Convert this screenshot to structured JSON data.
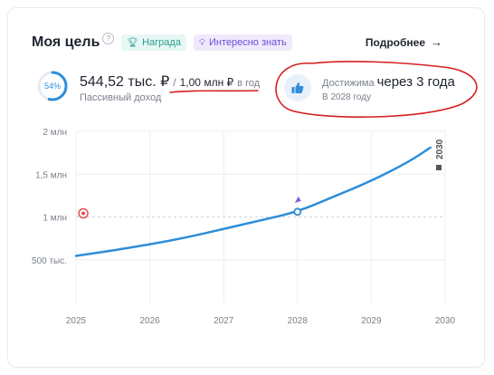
{
  "header": {
    "title": "Моя цель",
    "help": "?",
    "chip_award": "Награда",
    "chip_info": "Интересно знать",
    "more_label": "Подробнее",
    "more_arrow": "→"
  },
  "goal": {
    "percent": 54,
    "percent_label": "54%",
    "current": "544,52 тыс. ₽",
    "slash": "/",
    "target": "1,00 млн ₽",
    "per": "в год",
    "subtitle": "Пассивный доход"
  },
  "achieve": {
    "prefix": "Достижима",
    "when": "через 3 года",
    "year": "В 2028 году",
    "icon": "thumbs-up-icon"
  },
  "colors": {
    "accent": "#2f8ed8",
    "annotation": "#d42020",
    "award": "#2a9d8f",
    "info": "#6d4bd6"
  },
  "chart_data": {
    "type": "line",
    "y_ticks": [
      "2 млн",
      "1,5 млн",
      "1 млн",
      "500 тыс."
    ],
    "y_tick_values": [
      2000000,
      1500000,
      1000000,
      500000
    ],
    "x_ticks": [
      "2025",
      "2026",
      "2027",
      "2028",
      "2029",
      "2030"
    ],
    "x_tick_values": [
      2025,
      2026,
      2027,
      2028,
      2029,
      2030
    ],
    "ylim": [
      0,
      2000000
    ],
    "xlim": [
      2025,
      2030
    ],
    "series": [
      {
        "x": [
          2025,
          2025.5,
          2026,
          2026.5,
          2027,
          2027.5,
          2028,
          2028.5,
          2029,
          2029.5,
          2029.8
        ],
        "values": [
          545000,
          608000,
          680000,
          760000,
          860000,
          960000,
          1060000,
          1240000,
          1420000,
          1640000,
          1810000
        ]
      }
    ],
    "goal_line": 1000000,
    "goal_marker_x": 2025.05,
    "achieve_point": {
      "x": 2028,
      "y": 1060000
    },
    "finish_label": "2030",
    "finish_x": 2030,
    "grid": true
  }
}
